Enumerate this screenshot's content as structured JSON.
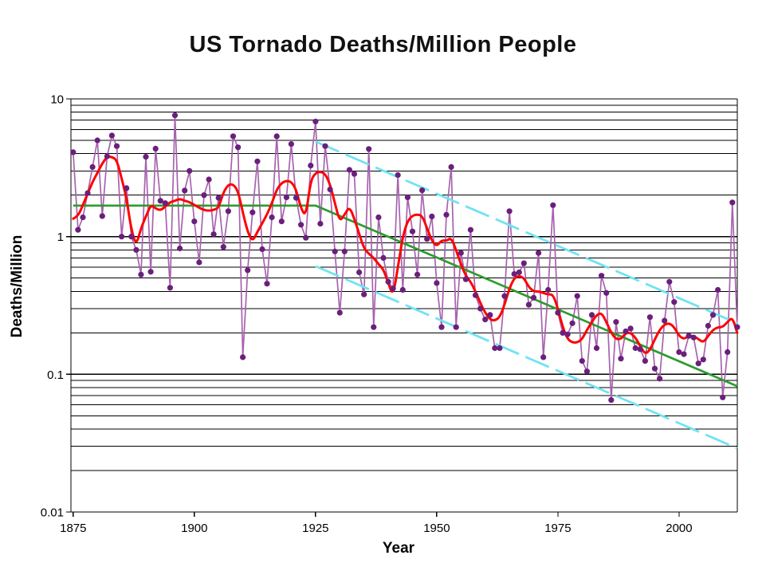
{
  "chart_data": {
    "type": "line",
    "title": "US Tornado Deaths/Million People",
    "xlabel": "Year",
    "ylabel": "Deaths/Million",
    "x_ticks": [
      1875,
      1900,
      1925,
      1950,
      1975,
      2000
    ],
    "y_ticks": [
      "10",
      "1",
      "0.1",
      "0.01"
    ],
    "y_tick_values": [
      10,
      1,
      0.1,
      0.01
    ],
    "xlim": [
      1874.5,
      2012
    ],
    "ylim": [
      0.01,
      10
    ],
    "y_scale": "log",
    "grid": "horizontal black major and minor log gridlines",
    "legend_position": "none",
    "colors": {
      "background": "#ffffff",
      "gridline": "#000000",
      "annual_marker": "#6B1F7C",
      "annual_line": "#A763AE",
      "smoothed_line": "#FF0000",
      "trend_line": "#2E9B2E",
      "envelope_line": "#6FE3F2",
      "title_text": "#111111",
      "axis_text": "#000000"
    },
    "series": [
      {
        "name": "annual-deaths-per-million",
        "type": "scatter+line",
        "start_year": 1875,
        "values": [
          4.1,
          1.12,
          1.38,
          2.07,
          3.2,
          5.0,
          1.41,
          3.83,
          5.42,
          4.54,
          1.0,
          2.25,
          1.0,
          0.8,
          0.53,
          3.8,
          0.555,
          4.35,
          1.82,
          1.75,
          0.425,
          7.6,
          0.82,
          2.16,
          3.0,
          1.29,
          0.65,
          2.0,
          2.6,
          1.04,
          1.91,
          0.84,
          1.53,
          5.36,
          4.45,
          0.133,
          0.57,
          1.5,
          3.52,
          0.81,
          0.455,
          1.38,
          5.35,
          1.29,
          1.93,
          4.7,
          1.91,
          1.22,
          0.98,
          3.28,
          6.86,
          1.24,
          4.54,
          2.2,
          0.78,
          0.28,
          0.78,
          3.05,
          2.85,
          0.55,
          0.38,
          4.33,
          0.22,
          1.38,
          0.7,
          0.47,
          0.42,
          2.8,
          0.41,
          1.93,
          1.09,
          0.53,
          2.17,
          0.96,
          1.4,
          0.46,
          0.22,
          1.44,
          3.2,
          0.22,
          0.76,
          0.49,
          1.12,
          0.375,
          0.3,
          0.25,
          0.27,
          0.155,
          0.155,
          0.37,
          1.53,
          0.535,
          0.55,
          0.64,
          0.32,
          0.36,
          0.76,
          0.133,
          0.41,
          1.69,
          0.28,
          0.2,
          0.195,
          0.235,
          0.37,
          0.125,
          0.105,
          0.27,
          0.155,
          0.52,
          0.39,
          0.065,
          0.24,
          0.13,
          0.205,
          0.215,
          0.155,
          0.152,
          0.125,
          0.26,
          0.11,
          0.093,
          0.245,
          0.47,
          0.335,
          0.145,
          0.14,
          0.19,
          0.185,
          0.12,
          0.128,
          0.225,
          0.27,
          0.41,
          0.068,
          0.145,
          1.77,
          0.22
        ]
      },
      {
        "name": "smoothed-average",
        "type": "line",
        "start_year": 1875,
        "values": [
          1.35,
          1.4,
          1.7,
          2.05,
          2.5,
          2.9,
          3.4,
          3.8,
          3.8,
          3.6,
          2.65,
          1.9,
          1.12,
          0.86,
          1.15,
          1.4,
          1.7,
          1.6,
          1.55,
          1.65,
          1.78,
          1.82,
          1.88,
          1.82,
          1.78,
          1.7,
          1.62,
          1.56,
          1.54,
          1.56,
          1.62,
          2.1,
          2.38,
          2.4,
          2.15,
          1.5,
          1.08,
          0.92,
          1.08,
          1.25,
          1.45,
          1.75,
          2.2,
          2.45,
          2.55,
          2.5,
          2.2,
          1.6,
          1.4,
          2.55,
          2.9,
          2.97,
          2.85,
          2.4,
          1.75,
          1.28,
          1.45,
          1.65,
          1.35,
          1.05,
          0.82,
          0.75,
          0.7,
          0.63,
          0.58,
          0.46,
          0.37,
          0.6,
          1.0,
          1.3,
          1.42,
          1.45,
          1.42,
          1.15,
          0.93,
          0.85,
          0.94,
          0.93,
          0.98,
          0.8,
          0.63,
          0.52,
          0.47,
          0.4,
          0.33,
          0.28,
          0.25,
          0.245,
          0.26,
          0.32,
          0.42,
          0.5,
          0.52,
          0.5,
          0.43,
          0.4,
          0.4,
          0.39,
          0.38,
          0.38,
          0.3,
          0.22,
          0.18,
          0.17,
          0.17,
          0.18,
          0.21,
          0.24,
          0.27,
          0.28,
          0.24,
          0.2,
          0.18,
          0.18,
          0.2,
          0.2,
          0.185,
          0.16,
          0.14,
          0.15,
          0.18,
          0.21,
          0.23,
          0.235,
          0.22,
          0.19,
          0.18,
          0.19,
          0.19,
          0.18,
          0.17,
          0.19,
          0.21,
          0.22,
          0.22,
          0.24,
          0.26,
          0.2
        ]
      },
      {
        "name": "trend-line-flat-then-declining",
        "type": "line",
        "points": [
          [
            1875,
            1.68
          ],
          [
            1925,
            1.68
          ],
          [
            2012,
            0.082
          ]
        ]
      },
      {
        "name": "upper-envelope",
        "type": "dashed-line",
        "points": [
          [
            1925,
            4.9
          ],
          [
            2012,
            0.235
          ]
        ]
      },
      {
        "name": "lower-envelope",
        "type": "dashed-line",
        "points": [
          [
            1925,
            0.61
          ],
          [
            2012,
            0.029
          ]
        ]
      }
    ]
  }
}
